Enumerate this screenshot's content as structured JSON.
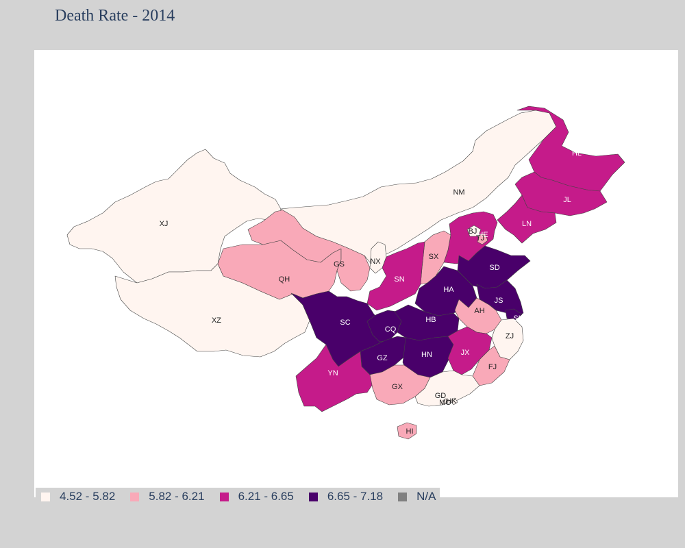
{
  "title": "Death Rate - 2014",
  "legend": [
    {
      "label": "4.52 - 5.82",
      "color": "#fff5f0"
    },
    {
      "label": "5.82 - 6.21",
      "color": "#f9a9b8"
    },
    {
      "label": "6.21 - 6.65",
      "color": "#c51b8a"
    },
    {
      "label": "6.65 - 7.18",
      "color": "#49006a"
    },
    {
      "label": "N/A",
      "color": "#808080"
    }
  ],
  "provinces": [
    {
      "code": "XJ",
      "bin": 0
    },
    {
      "code": "XZ",
      "bin": 0
    },
    {
      "code": "QH",
      "bin": 1
    },
    {
      "code": "GS",
      "bin": 1
    },
    {
      "code": "NM",
      "bin": 0
    },
    {
      "code": "HL",
      "bin": 2
    },
    {
      "code": "JL",
      "bin": 2
    },
    {
      "code": "LN",
      "bin": 2
    },
    {
      "code": "HE",
      "bin": 2
    },
    {
      "code": "BJ",
      "bin": 0
    },
    {
      "code": "TJ",
      "bin": 1
    },
    {
      "code": "NX",
      "bin": 0
    },
    {
      "code": "SX",
      "bin": 1
    },
    {
      "code": "SN",
      "bin": 2
    },
    {
      "code": "SD",
      "bin": 3
    },
    {
      "code": "HA",
      "bin": 3
    },
    {
      "code": "JS",
      "bin": 3
    },
    {
      "code": "AH",
      "bin": 1
    },
    {
      "code": "SH",
      "bin": 3
    },
    {
      "code": "SC",
      "bin": 3
    },
    {
      "code": "CQ",
      "bin": 3
    },
    {
      "code": "HB",
      "bin": 3
    },
    {
      "code": "ZJ",
      "bin": 0
    },
    {
      "code": "GZ",
      "bin": 3
    },
    {
      "code": "HN",
      "bin": 3
    },
    {
      "code": "JX",
      "bin": 2
    },
    {
      "code": "FJ",
      "bin": 1
    },
    {
      "code": "YN",
      "bin": 2
    },
    {
      "code": "GX",
      "bin": 1
    },
    {
      "code": "GD",
      "bin": 0
    },
    {
      "code": "HK",
      "bin": 0
    },
    {
      "code": "MO",
      "bin": 0
    },
    {
      "code": "HI",
      "bin": 1
    }
  ]
}
